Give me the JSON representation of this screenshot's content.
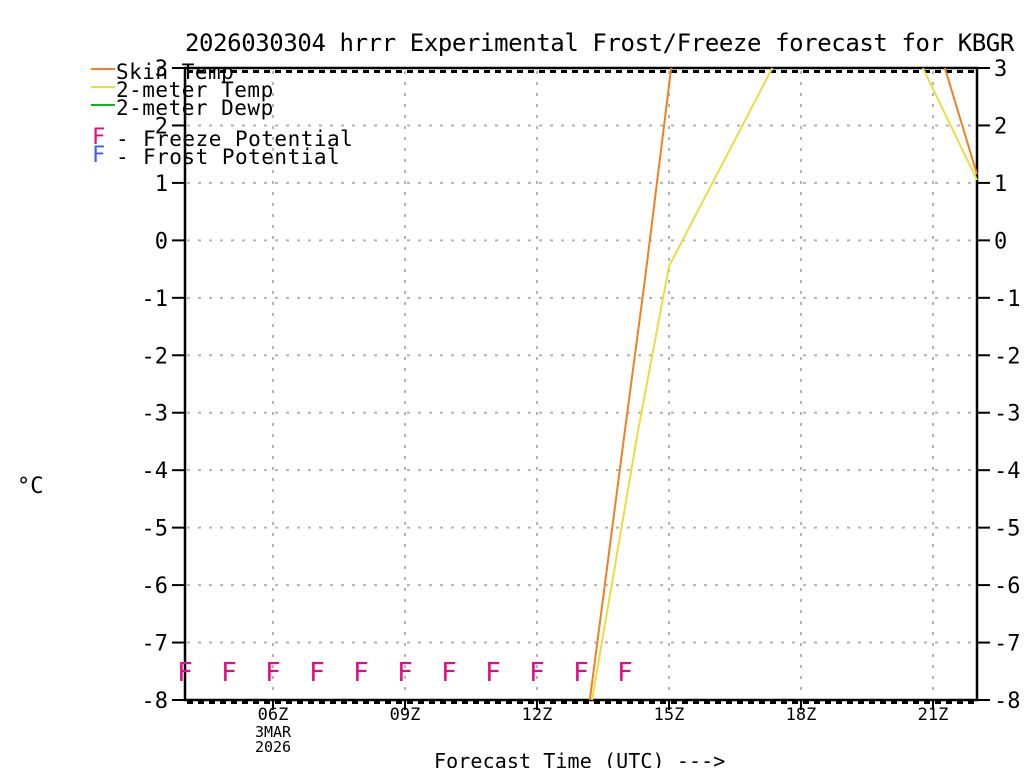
{
  "chart_data": {
    "type": "line",
    "title": "2026030304 hrrr Experimental Frost/Freeze forecast for KBGR",
    "xlabel": "Forecast Time (UTC) --->",
    "ylabel": "°C",
    "xlim": [
      4,
      22
    ],
    "ylim": [
      -8,
      3
    ],
    "grid": true,
    "x_ticks": [
      {
        "hour": 6,
        "label": "06Z"
      },
      {
        "hour": 9,
        "label": "09Z"
      },
      {
        "hour": 12,
        "label": "12Z"
      },
      {
        "hour": 15,
        "label": "15Z"
      },
      {
        "hour": 18,
        "label": "18Z"
      },
      {
        "hour": 21,
        "label": "21Z"
      }
    ],
    "x_date_label": {
      "hour": 6,
      "lines": [
        "3MAR",
        "2026"
      ]
    },
    "y_ticks": [
      3,
      2,
      1,
      0,
      -1,
      -2,
      -3,
      -4,
      -5,
      -6,
      -7,
      -8
    ],
    "series": [
      {
        "name": "Skin Temp",
        "color": "#ef8122",
        "segments": [
          [
            [
              13.2,
              -8
            ],
            [
              14.0,
              -3.3
            ],
            [
              14.45,
              -0.7
            ],
            [
              15.05,
              3
            ]
          ],
          [
            [
              21.27,
              3
            ],
            [
              22,
              1.15
            ]
          ]
        ]
      },
      {
        "name": "2-meter Temp",
        "color": "#e7df41",
        "segments": [
          [
            [
              13.25,
              -8
            ],
            [
              14.3,
              -3.3
            ],
            [
              15.0,
              -0.45
            ],
            [
              17.35,
              3
            ]
          ],
          [
            [
              20.77,
              3
            ],
            [
              22,
              1.05
            ]
          ]
        ]
      },
      {
        "name": "2-meter Dewp",
        "color": "#12b41a",
        "segments": []
      }
    ],
    "freeze_markers": {
      "symbol": "F",
      "color": "#e60a87",
      "value": -7.5,
      "hours": [
        4,
        5,
        6,
        7,
        8,
        9,
        10,
        11,
        12,
        13,
        14
      ]
    },
    "frost_markers": {
      "symbol": "F",
      "color": "#4060e8",
      "value": null,
      "hours": []
    }
  },
  "legend": {
    "series": [
      {
        "label": "Skin Temp",
        "color": "#ef8122"
      },
      {
        "label": "2-meter Temp",
        "color": "#e7df41"
      },
      {
        "label": "2-meter Dewp",
        "color": "#12b41a"
      }
    ],
    "markers": [
      {
        "symbol": "F",
        "separator": "-",
        "label": "Freeze Potential",
        "color": "#e60a87"
      },
      {
        "symbol": "F",
        "separator": "-",
        "label": "Frost Potential",
        "color": "#4060e8"
      }
    ]
  },
  "style": {
    "grid_color": "#b4b4b4",
    "axis_color": "#000000"
  }
}
